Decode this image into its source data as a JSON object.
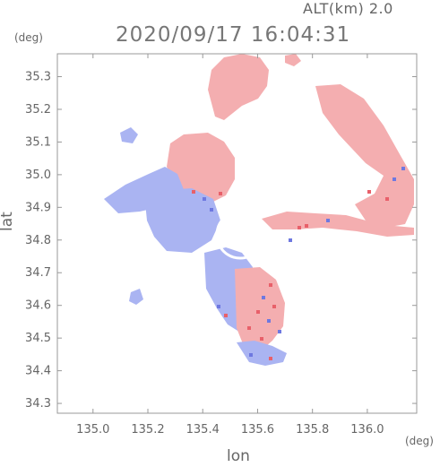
{
  "header": {
    "altitude_label": "ALT(km) 2.0",
    "timestamp": "2020/09/17 16:04:31"
  },
  "axes": {
    "lat_unit": "(deg)",
    "lon_unit": "(deg)",
    "ylabel": "lat",
    "xlabel": "lon"
  },
  "colors": {
    "approaching": "#aab4f2",
    "receding": "#f4aeb0",
    "strong_receding": "#e8606a",
    "strong_approaching": "#6e78e0",
    "frame": "#999999"
  },
  "chart_data": {
    "type": "heatmap",
    "title": "2020/09/17 16:04:31",
    "xlabel": "lon",
    "ylabel": "lat",
    "x_unit": "deg",
    "y_unit": "deg",
    "xlim": [
      134.87,
      136.18
    ],
    "ylim": [
      34.27,
      35.37
    ],
    "x_ticks": [
      "135.0",
      "135.2",
      "135.4",
      "135.6",
      "135.8",
      "136.0"
    ],
    "y_ticks": [
      "34.3",
      "34.4",
      "34.5",
      "34.6",
      "34.7",
      "34.8",
      "34.9",
      "35.0",
      "35.1",
      "35.2",
      "35.3"
    ],
    "grid": false,
    "legend": "none"
  }
}
